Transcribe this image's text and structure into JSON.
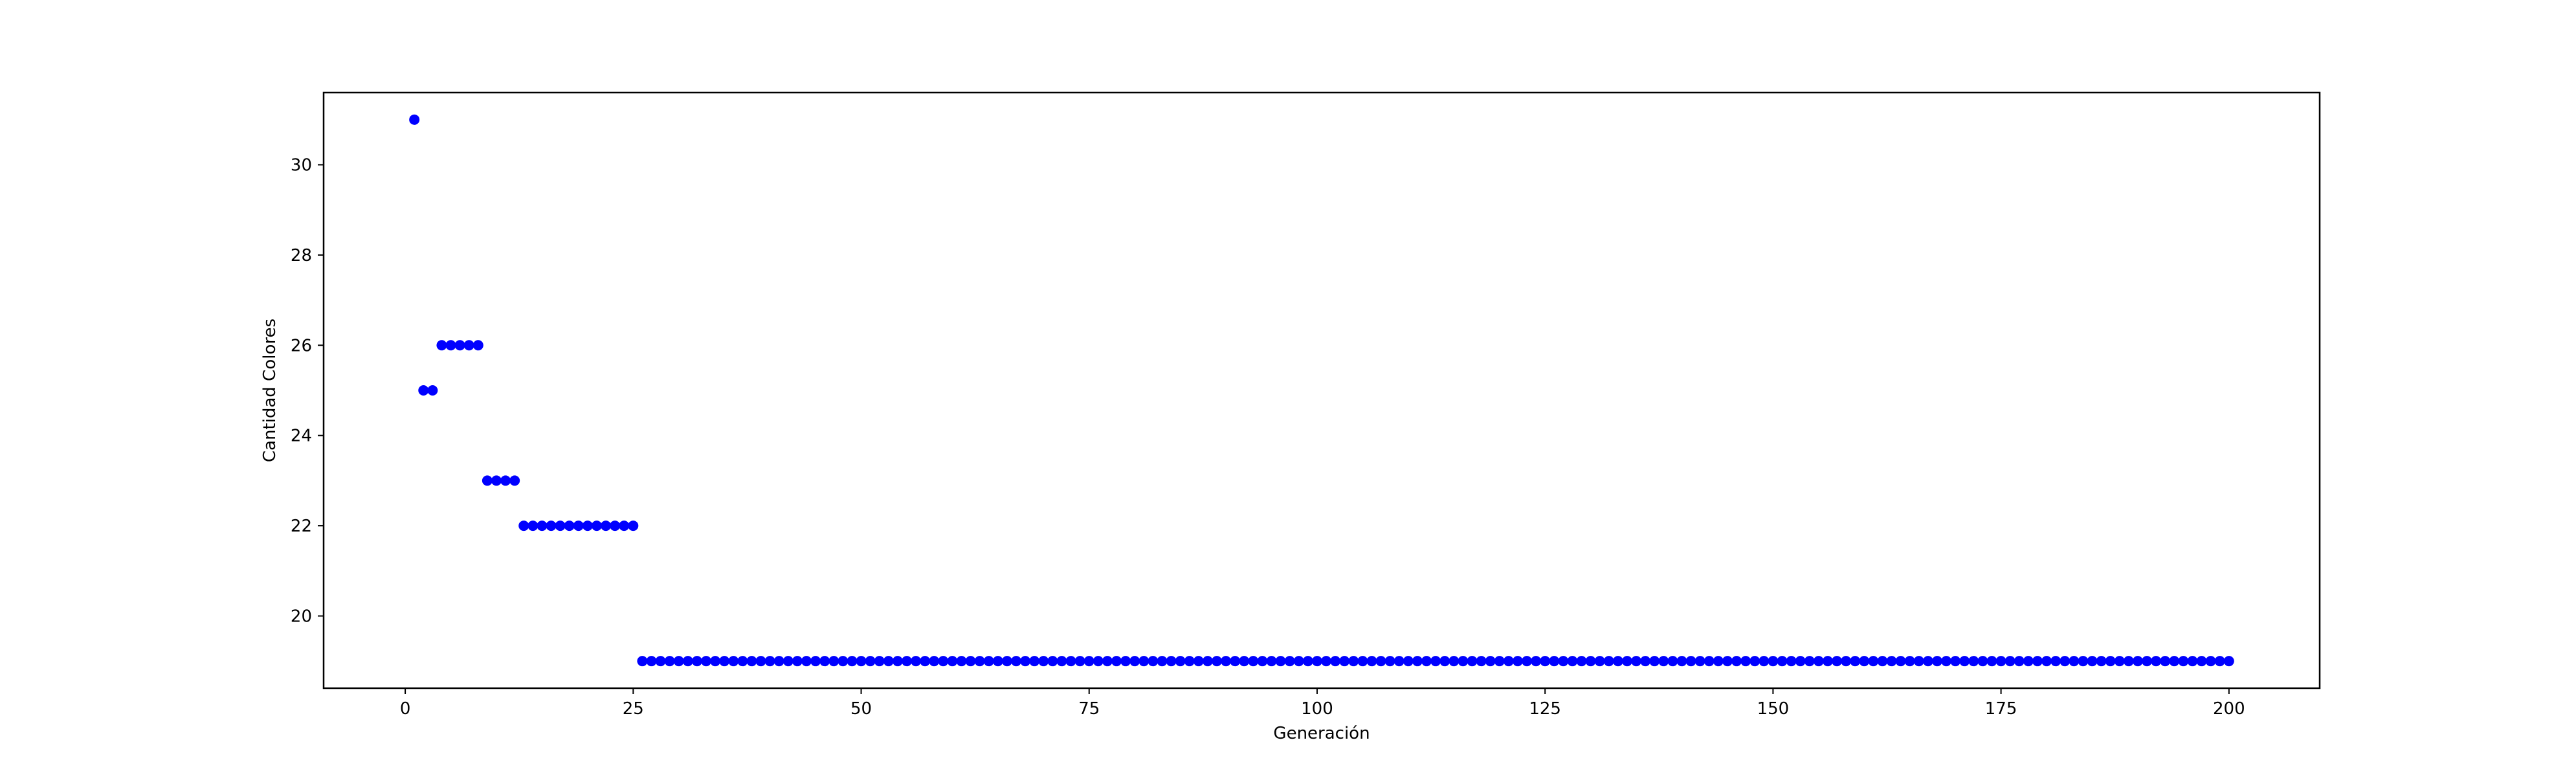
{
  "chart_data": {
    "type": "scatter",
    "title": "",
    "xlabel": "Generación",
    "ylabel": "Cantidad Colores",
    "xlim": [
      -8.95,
      209.95
    ],
    "ylim": [
      18.4,
      31.6
    ],
    "xticks": [
      0,
      25,
      50,
      75,
      100,
      125,
      150,
      175,
      200
    ],
    "yticks": [
      20,
      22,
      24,
      26,
      28,
      30
    ],
    "grid": false,
    "legend": "none",
    "marker_color": "#0000ff",
    "series": [
      {
        "segments": [
          {
            "x_from": 1,
            "x_to": 1,
            "y": 31
          },
          {
            "x_from": 2,
            "x_to": 3,
            "y": 25
          },
          {
            "x_from": 4,
            "x_to": 8,
            "y": 26
          },
          {
            "x_from": 9,
            "x_to": 12,
            "y": 23
          },
          {
            "x_from": 13,
            "x_to": 25,
            "y": 22
          },
          {
            "x_from": 26,
            "x_to": 200,
            "y": 19
          }
        ]
      }
    ]
  }
}
